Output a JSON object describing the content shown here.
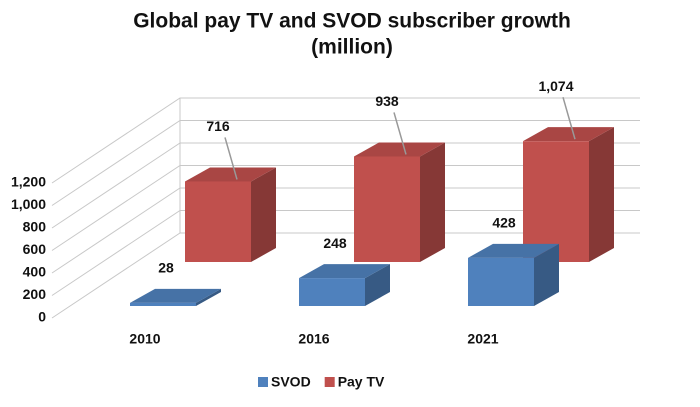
{
  "chart_data": {
    "type": "bar3d",
    "title": "Global pay TV and SVOD subscriber growth",
    "subtitle": "(million)",
    "categories": [
      "2010",
      "2016",
      "2021"
    ],
    "series": [
      {
        "name": "SVOD",
        "color": "#4f81bd",
        "values": [
          28,
          248,
          428
        ]
      },
      {
        "name": "Pay TV",
        "color": "#c0504d",
        "values": [
          716,
          938,
          1074
        ],
        "value_labels": [
          "716",
          "938",
          "1,074"
        ]
      }
    ],
    "ylim": [
      0,
      1200
    ],
    "yticks": [
      0,
      200,
      400,
      600,
      800,
      {
        "value": 1000,
        "label": "1,000"
      },
      {
        "value": 1200,
        "label": "1,200"
      }
    ],
    "grid": true,
    "legend": "bottom"
  }
}
